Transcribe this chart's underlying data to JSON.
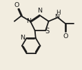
{
  "background_color": "#f2ede0",
  "bond_color": "#1a1a1a",
  "text_color": "#1a1a1a",
  "bond_width": 1.3,
  "font_size": 6.8,
  "figsize": [
    1.19,
    1.01
  ],
  "dpi": 100,
  "xlim": [
    0.0,
    10.0
  ],
  "ylim": [
    0.5,
    9.5
  ]
}
